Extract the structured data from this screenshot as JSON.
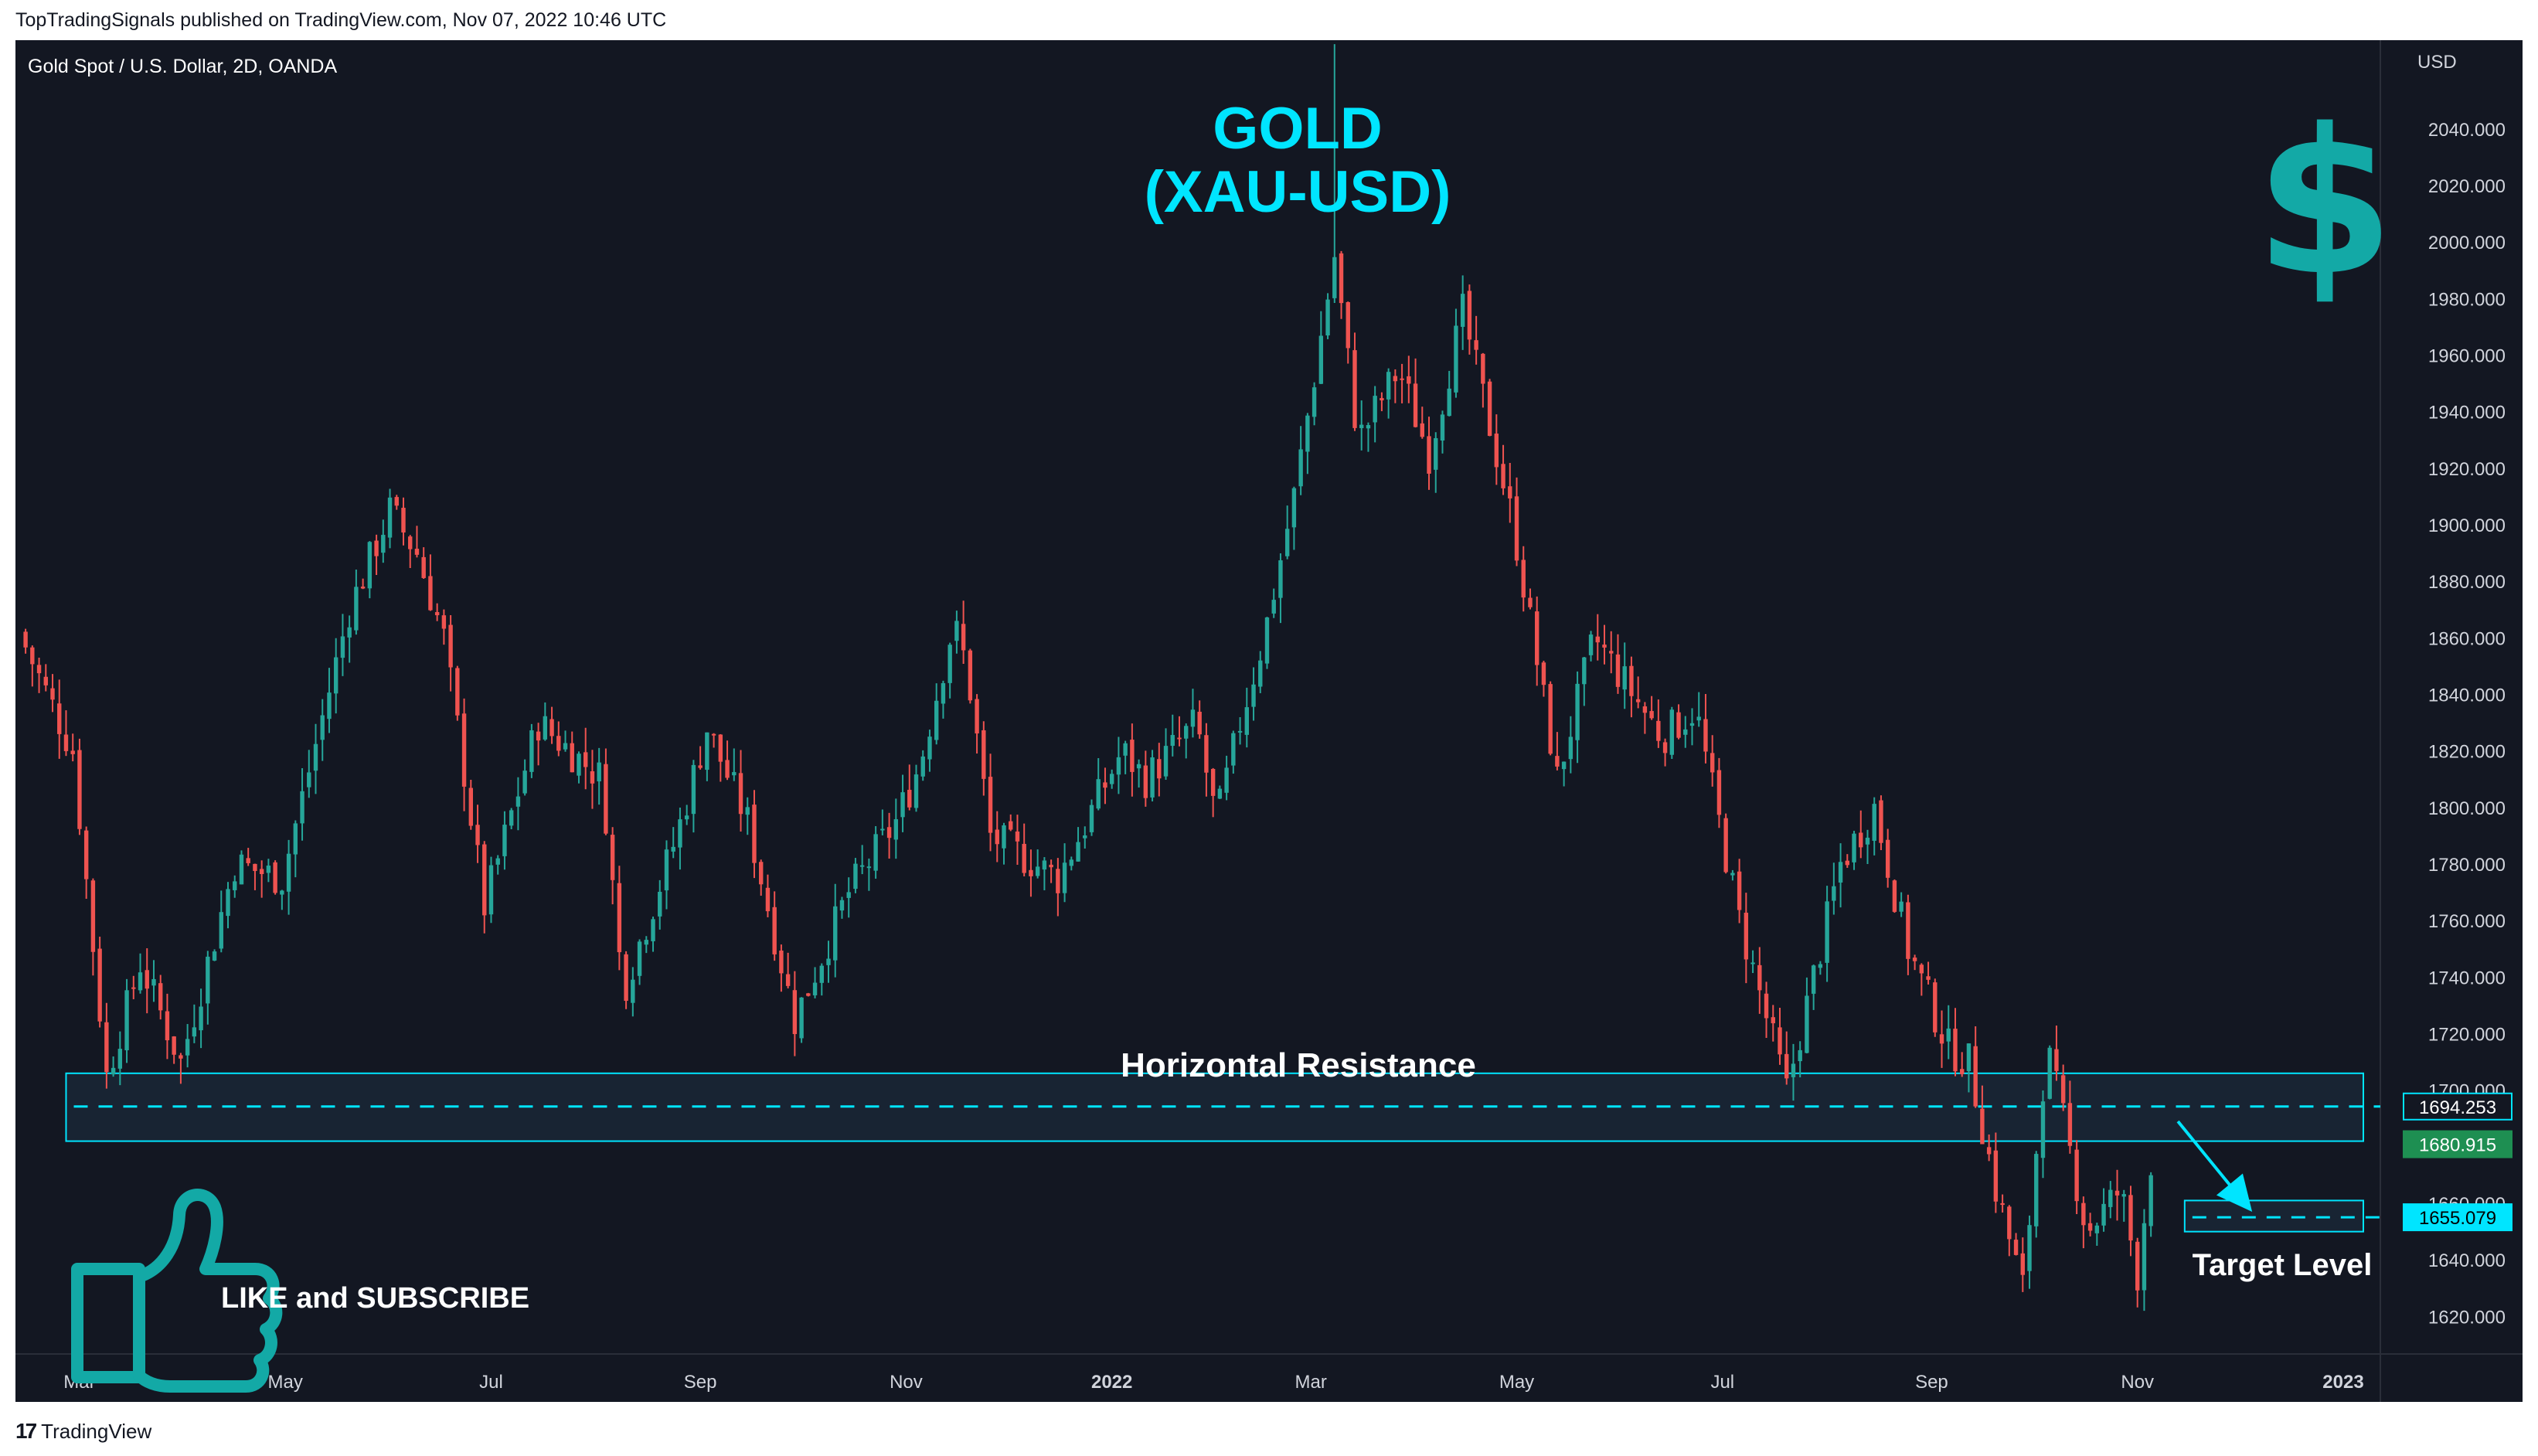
{
  "header": {
    "publish_line": "TopTradingSignals published on TradingView.com, Nov 07, 2022 10:46 UTC"
  },
  "footer": {
    "logo_text": "TradingView",
    "logo_mark": "17"
  },
  "colors": {
    "background": "#131722",
    "up_candle": "#26a69a",
    "down_candle": "#ef5350",
    "accent": "#00e5ff",
    "axis_text": "#d1d4dc",
    "zone_fill": "#1b2a3a"
  },
  "chart_data": {
    "type": "candlestick",
    "symbol_title": "Gold Spot / U.S. Dollar, 2D, OANDA",
    "title": "GOLD",
    "subtitle": "(XAU-USD)",
    "currency_label": "USD",
    "ylim": [
      1610,
      2055
    ],
    "y_ticks": [
      1620,
      1640,
      1660,
      1680,
      1700,
      1720,
      1740,
      1760,
      1780,
      1800,
      1820,
      1840,
      1860,
      1880,
      1900,
      1920,
      1940,
      1960,
      1980,
      2000,
      2020,
      2040
    ],
    "y_tick_labels": [
      "1620.000",
      "1640.000",
      "1660.000",
      "1680.000",
      "1700.000",
      "1720.000",
      "1740.000",
      "1760.000",
      "1780.000",
      "1800.000",
      "1820.000",
      "1840.000",
      "1860.000",
      "1880.000",
      "1900.000",
      "1920.000",
      "1940.000",
      "1960.000",
      "1980.000",
      "2000.000",
      "2020.000",
      "2040.000"
    ],
    "x_range": [
      "2021-02-10",
      "2023-01-12"
    ],
    "x_ticks": [
      {
        "label": "Mar",
        "date": "2021-03-01",
        "bold": false
      },
      {
        "label": "May",
        "date": "2021-05-01",
        "bold": false
      },
      {
        "label": "Jul",
        "date": "2021-07-01",
        "bold": false
      },
      {
        "label": "Sep",
        "date": "2021-09-01",
        "bold": false
      },
      {
        "label": "Nov",
        "date": "2021-11-01",
        "bold": false
      },
      {
        "label": "2022",
        "date": "2022-01-01",
        "bold": true
      },
      {
        "label": "Mar",
        "date": "2022-03-01",
        "bold": false
      },
      {
        "label": "May",
        "date": "2022-05-01",
        "bold": false
      },
      {
        "label": "Jul",
        "date": "2022-07-01",
        "bold": false
      },
      {
        "label": "Sep",
        "date": "2022-09-01",
        "bold": false
      },
      {
        "label": "Nov",
        "date": "2022-11-01",
        "bold": false
      },
      {
        "label": "2023",
        "date": "2023-01-01",
        "bold": true
      }
    ],
    "candle_interval_days": 2,
    "waypoints": [
      [
        "2021-02-11",
        1862
      ],
      [
        "2021-02-27",
        1820
      ],
      [
        "2021-03-09",
        1705
      ],
      [
        "2021-03-19",
        1745
      ],
      [
        "2021-03-31",
        1710
      ],
      [
        "2021-04-16",
        1780
      ],
      [
        "2021-04-30",
        1775
      ],
      [
        "2021-05-20",
        1870
      ],
      [
        "2021-06-01",
        1905
      ],
      [
        "2021-06-09",
        1890
      ],
      [
        "2021-06-17",
        1860
      ],
      [
        "2021-06-29",
        1765
      ],
      [
        "2021-07-15",
        1830
      ],
      [
        "2021-08-03",
        1810
      ],
      [
        "2021-08-09",
        1735
      ],
      [
        "2021-08-25",
        1790
      ],
      [
        "2021-09-03",
        1828
      ],
      [
        "2021-09-15",
        1795
      ],
      [
        "2021-09-29",
        1725
      ],
      [
        "2021-10-15",
        1770
      ],
      [
        "2021-10-29",
        1795
      ],
      [
        "2021-11-05",
        1815
      ],
      [
        "2021-11-15",
        1865
      ],
      [
        "2021-11-19",
        1850
      ],
      [
        "2021-11-26",
        1790
      ],
      [
        "2021-12-16",
        1775
      ],
      [
        "2022-01-04",
        1820
      ],
      [
        "2022-01-11",
        1810
      ],
      [
        "2022-01-26",
        1830
      ],
      [
        "2022-02-01",
        1795
      ],
      [
        "2022-02-08",
        1830
      ],
      [
        "2022-02-15",
        1860
      ],
      [
        "2022-02-24",
        1910
      ],
      [
        "2022-03-08",
        1995
      ],
      [
        "2022-03-15",
        1930
      ],
      [
        "2022-03-27",
        1955
      ],
      [
        "2022-04-05",
        1925
      ],
      [
        "2022-04-15",
        1975
      ],
      [
        "2022-04-20",
        1950
      ],
      [
        "2022-04-30",
        1900
      ],
      [
        "2022-05-13",
        1810
      ],
      [
        "2022-05-24",
        1860
      ],
      [
        "2022-06-13",
        1825
      ],
      [
        "2022-06-23",
        1835
      ],
      [
        "2022-07-06",
        1760
      ],
      [
        "2022-07-20",
        1700
      ],
      [
        "2022-08-05",
        1780
      ],
      [
        "2022-08-15",
        1800
      ],
      [
        "2022-08-25",
        1750
      ],
      [
        "2022-09-06",
        1715
      ],
      [
        "2022-09-12",
        1710
      ],
      [
        "2022-09-20",
        1665
      ],
      [
        "2022-09-28",
        1630
      ],
      [
        "2022-10-05",
        1715
      ],
      [
        "2022-10-09",
        1695
      ],
      [
        "2022-10-17",
        1650
      ],
      [
        "2022-10-27",
        1665
      ],
      [
        "2022-11-01",
        1635
      ],
      [
        "2022-11-05",
        1675
      ]
    ],
    "last_wick_date": "2022-03-08",
    "price_labels": [
      {
        "value": 1694.253,
        "text": "1694.253",
        "style": "outline"
      },
      {
        "value": 1680.915,
        "text": "1680.915",
        "style": "green"
      },
      {
        "value": 1655.079,
        "text": "1655.079",
        "style": "cyan"
      }
    ],
    "annotations": {
      "resistance_label": "Horizontal Resistance",
      "resistance_top": 1706,
      "resistance_bottom": 1682,
      "resistance_level": 1694.253,
      "zone_start": "2021-02-25",
      "target_label": "Target Level",
      "target_top": 1661,
      "target_bottom": 1650,
      "target_level": 1655.079,
      "target_box_start": "2022-11-15",
      "arrow_from": [
        "2022-11-13",
        1689
      ],
      "arrow_to": [
        "2022-12-05",
        1657
      ],
      "like_label": "LIKE and SUBSCRIBE",
      "dollar_symbol": "$"
    }
  }
}
